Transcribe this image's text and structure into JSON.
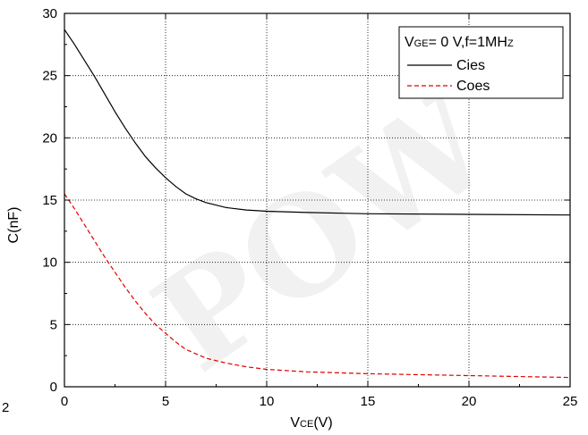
{
  "chart_data": {
    "type": "line",
    "title": "",
    "xlabel": {
      "main": "V",
      "sub": "CE",
      "tail": "(V)"
    },
    "ylabel": "C(nF)",
    "xlim": [
      0,
      25
    ],
    "ylim": [
      0,
      30
    ],
    "xticks": [
      0,
      5,
      10,
      15,
      20,
      25
    ],
    "yticks": [
      0,
      5,
      10,
      15,
      20,
      25,
      30
    ],
    "grid": true,
    "legend_position": "top-right",
    "legend_title": {
      "v": "V",
      "ge": "GE",
      "rest": "= 0 V,f=1MH",
      "z": "Z"
    },
    "stray_edge_text": "2",
    "series": [
      {
        "name": "Cies",
        "color": "#000000",
        "dash": "solid",
        "x": [
          0,
          0.5,
          1,
          1.5,
          2,
          2.5,
          3,
          3.5,
          4,
          4.5,
          5,
          5.5,
          6,
          6.5,
          7,
          8,
          9,
          10,
          12,
          15,
          20,
          25
        ],
        "y": [
          28.7,
          27.5,
          26.2,
          24.9,
          23.5,
          22.1,
          20.8,
          19.6,
          18.5,
          17.6,
          16.8,
          16.1,
          15.5,
          15.1,
          14.8,
          14.4,
          14.2,
          14.1,
          14.0,
          13.9,
          13.85,
          13.8
        ]
      },
      {
        "name": "Coes",
        "color": "#e00000",
        "dash": "dashed",
        "x": [
          0,
          0.5,
          1,
          1.5,
          2,
          2.5,
          3,
          3.5,
          4,
          4.5,
          5,
          5.5,
          6,
          7,
          8,
          9,
          10,
          12,
          15,
          20,
          25
        ],
        "y": [
          15.5,
          14.3,
          13.0,
          11.7,
          10.4,
          9.2,
          8.0,
          6.9,
          5.9,
          5.0,
          4.3,
          3.6,
          3.0,
          2.3,
          1.9,
          1.6,
          1.4,
          1.2,
          1.05,
          0.9,
          0.75
        ]
      }
    ]
  },
  "watermark": {
    "text": "POW"
  }
}
